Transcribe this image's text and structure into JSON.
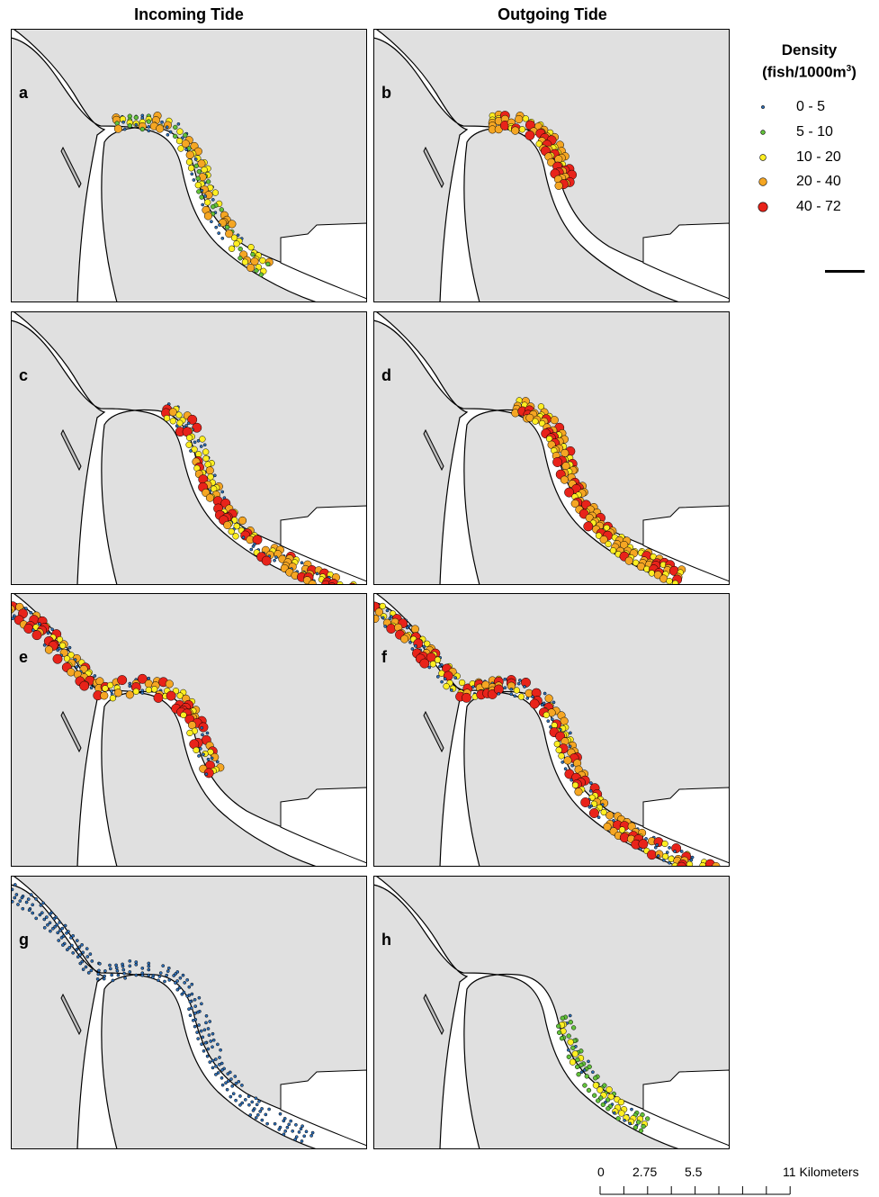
{
  "columns": {
    "incoming": "Incoming Tide",
    "outgoing": "Outgoing Tide"
  },
  "legend": {
    "title_line1": "Density",
    "title_line2_prefix": "(fish/1000m",
    "title_line2_sup": "3",
    "title_line2_suffix": ")",
    "classes": [
      {
        "label": "0 - 5",
        "color": "#2e6fb8"
      },
      {
        "label": "5 - 10",
        "color": "#62c13a"
      },
      {
        "label": "10 - 20",
        "color": "#ffee22"
      },
      {
        "label": "20 - 40",
        "color": "#f5a623"
      },
      {
        "label": "40 - 72",
        "color": "#e8231a"
      }
    ]
  },
  "panels": [
    {
      "label": "a",
      "tide": "Incoming Tide",
      "survey_extent": "upper-middle",
      "dominant_classes": [
        "0 - 5",
        "5 - 10",
        "10 - 20",
        "20 - 40"
      ]
    },
    {
      "label": "b",
      "tide": "Outgoing Tide",
      "survey_extent": "upper",
      "dominant_classes": [
        "10 - 20",
        "20 - 40",
        "40 - 72"
      ]
    },
    {
      "label": "c",
      "tide": "Incoming Tide",
      "survey_extent": "middle-lower",
      "dominant_classes": [
        "0 - 5",
        "10 - 20",
        "20 - 40",
        "40 - 72"
      ]
    },
    {
      "label": "d",
      "tide": "Outgoing Tide",
      "survey_extent": "upper-middle",
      "dominant_classes": [
        "20 - 40",
        "10 - 20",
        "40 - 72"
      ]
    },
    {
      "label": "e",
      "tide": "Incoming Tide",
      "survey_extent": "mouth-upper",
      "dominant_classes": [
        "0 - 5",
        "10 - 20",
        "20 - 40",
        "40 - 72"
      ]
    },
    {
      "label": "f",
      "tide": "Outgoing Tide",
      "survey_extent": "mouth-lower",
      "dominant_classes": [
        "0 - 5",
        "10 - 20",
        "20 - 40",
        "40 - 72"
      ]
    },
    {
      "label": "g",
      "tide": "Incoming Tide",
      "survey_extent": "mouth-lower",
      "dominant_classes": [
        "0 - 5"
      ]
    },
    {
      "label": "h",
      "tide": "Outgoing Tide",
      "survey_extent": "middle",
      "dominant_classes": [
        "0 - 5",
        "5 - 10",
        "10 - 20"
      ]
    }
  ],
  "scale": {
    "ticks": [
      "0",
      "2.75",
      "5.5",
      "11"
    ],
    "unit": "Kilometers"
  },
  "colors": {
    "land": "#e0e0e0",
    "water": "#ffffff",
    "outline": "#000000"
  }
}
